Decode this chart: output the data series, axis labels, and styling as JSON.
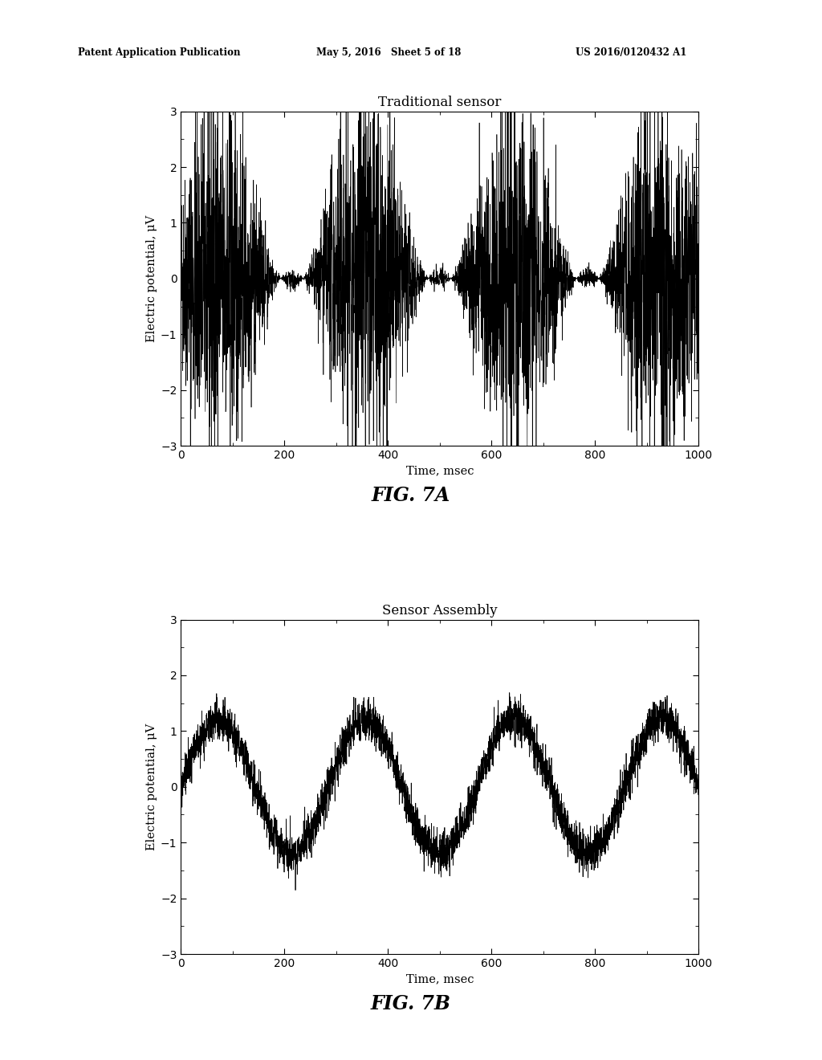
{
  "fig7a_title": "Traditional sensor",
  "fig7b_title": "Sensor Assembly",
  "fig7a_label": "FIG. 7A",
  "fig7b_label": "FIG. 7B",
  "xlabel": "Time, msec",
  "ylabel": "Electric potential, μV",
  "xlim": [
    0,
    1000
  ],
  "ylim": [
    -3,
    3
  ],
  "xticks": [
    0,
    200,
    400,
    600,
    800,
    1000
  ],
  "yticks": [
    -3,
    -2,
    -1,
    0,
    1,
    2,
    3
  ],
  "header_left": "Patent Application Publication",
  "header_center": "May 5, 2016   Sheet 5 of 18",
  "header_right": "US 2016/0120432 A1",
  "line_color": "#000000",
  "background_color": "#ffffff",
  "fig7a_noise_base": 0.8,
  "fig7a_noise_mod": 0.9,
  "fig7a_signal_freq": 3.5,
  "fig7b_signal_amplitude": 1.2,
  "fig7b_signal_freq": 3.5,
  "fig7b_noise_amplitude": 0.18,
  "n_points": 4000,
  "seed_a": 42,
  "seed_b": 99
}
